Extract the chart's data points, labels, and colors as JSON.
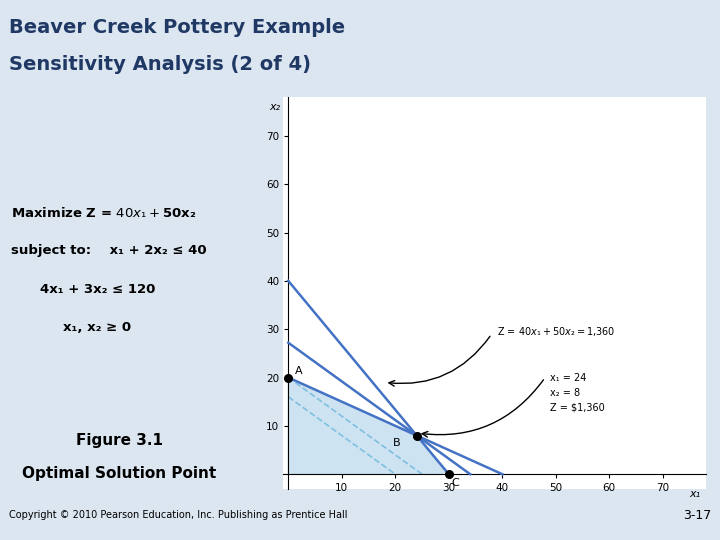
{
  "title_line1": "Beaver Creek Pottery Example",
  "title_line2": "Sensitivity Analysis (2 of 4)",
  "title_bg": "#dce6f1",
  "title_color": "#1f3864",
  "separator_color": "#2ab0c8",
  "content_bg": "#dce6f1",
  "graph_bg": "#ffffff",
  "feasible_fill": "#c5dff0",
  "constraint_color": "#4472c4",
  "obj_dashed_color": "#7fbfe0",
  "point_color": "#000000",
  "text_color": "#000000",
  "copyright": "Copyright © 2010 Pearson Education, Inc. Publishing as Prentice Hall",
  "page_ref": "3-17",
  "x1_axis_label": "x₁",
  "x2_axis_label": "x₂",
  "xticks": [
    10,
    20,
    30,
    40,
    50,
    60,
    70
  ],
  "yticks": [
    10,
    20,
    30,
    40,
    50,
    60,
    70
  ],
  "point_A": [
    0,
    20
  ],
  "point_B": [
    24,
    8
  ],
  "point_C": [
    30,
    0
  ],
  "annotation_obj": "Z = $40x₁ + 50x₂ = $1,360",
  "annotation_sol_line1": "x₁ = 24",
  "annotation_sol_line2": "x₂ = 8",
  "annotation_sol_line3": "Z = $1,360"
}
